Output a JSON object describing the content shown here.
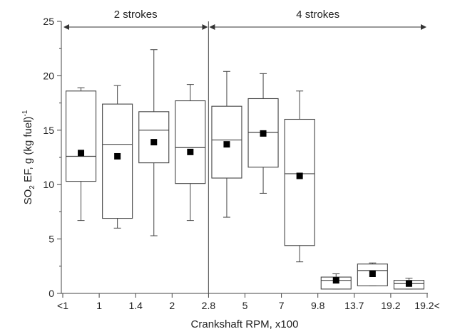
{
  "chart_data": {
    "type": "box",
    "xlabel": "Crankshaft RPM, x100",
    "ylabel": {
      "prefix": "SO",
      "sub": "2",
      "main": " EF, g (kg fuel)",
      "sup": "-1"
    },
    "ylim": [
      0,
      25
    ],
    "yticks": [
      0,
      5,
      10,
      15,
      20,
      25
    ],
    "x_tick_labels": [
      "<1",
      "1",
      "1.4",
      "2",
      "2.8",
      "5",
      "7",
      "9.8",
      "13.7",
      "19.2",
      "19.2<"
    ],
    "groups": [
      {
        "label": "2 strokes",
        "start_tick": 0,
        "end_tick": 4
      },
      {
        "label": "4 strokes",
        "start_tick": 4,
        "end_tick": 10
      }
    ],
    "boxes": [
      {
        "whisker_low": 6.7,
        "q1": 10.3,
        "median": 12.6,
        "q3": 18.6,
        "whisker_high": 18.9,
        "mean": 12.9
      },
      {
        "whisker_low": 6.0,
        "q1": 6.9,
        "median": 13.7,
        "q3": 17.4,
        "whisker_high": 19.1,
        "mean": 12.6
      },
      {
        "whisker_low": 5.3,
        "q1": 12.0,
        "median": 15.0,
        "q3": 16.7,
        "whisker_high": 22.4,
        "mean": 13.9
      },
      {
        "whisker_low": 6.7,
        "q1": 10.1,
        "median": 13.4,
        "q3": 17.7,
        "whisker_high": 19.2,
        "mean": 13.0
      },
      {
        "whisker_low": 7.0,
        "q1": 10.6,
        "median": 14.1,
        "q3": 17.2,
        "whisker_high": 20.4,
        "mean": 13.7
      },
      {
        "whisker_low": 9.2,
        "q1": 11.6,
        "median": 14.8,
        "q3": 17.9,
        "whisker_high": 20.2,
        "mean": 14.7
      },
      {
        "whisker_low": 2.9,
        "q1": 4.4,
        "median": 11.0,
        "q3": 16.0,
        "whisker_high": 18.6,
        "mean": 10.8
      },
      {
        "whisker_low": 0.4,
        "q1": 0.4,
        "median": 1.2,
        "q3": 1.5,
        "whisker_high": 1.8,
        "mean": 1.2
      },
      {
        "whisker_low": 0.7,
        "q1": 0.7,
        "median": 2.1,
        "q3": 2.7,
        "whisker_high": 2.8,
        "mean": 1.8
      },
      {
        "whisker_low": 0.4,
        "q1": 0.4,
        "median": 0.9,
        "q3": 1.2,
        "whisker_high": 1.4,
        "mean": 0.9
      }
    ],
    "divider_at_tick": 4,
    "grid": false
  }
}
